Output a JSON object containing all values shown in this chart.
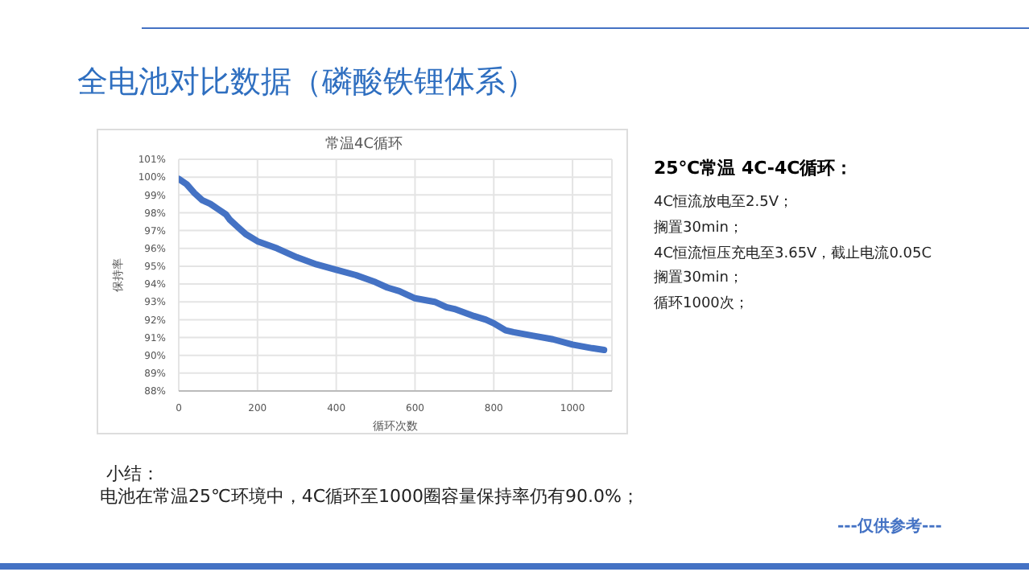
{
  "chart_data": {
    "type": "line",
    "title": "全电池对比数据（磷酸铁锂体系）",
    "subtitle": "常温4C循环",
    "xlabel": "循环次数",
    "ylabel": "保持率",
    "x": [
      0,
      20,
      40,
      60,
      80,
      100,
      120,
      130,
      150,
      170,
      200,
      250,
      300,
      350,
      400,
      450,
      500,
      530,
      560,
      600,
      650,
      680,
      700,
      750,
      780,
      800,
      830,
      850,
      900,
      950,
      1000,
      1050,
      1080
    ],
    "series": [
      {
        "color": "#4472c4",
        "values": [
          99.9,
          99.6,
          99.1,
          98.7,
          98.5,
          98.2,
          97.9,
          97.6,
          97.2,
          96.8,
          96.4,
          96.0,
          95.5,
          95.1,
          94.8,
          94.5,
          94.1,
          93.8,
          93.6,
          93.2,
          93.0,
          92.7,
          92.6,
          92.2,
          92.0,
          91.8,
          91.4,
          91.3,
          91.1,
          90.9,
          90.6,
          90.4,
          90.3
        ]
      }
    ],
    "xlim": [
      0,
      1100
    ],
    "xticks": [
      0,
      200,
      400,
      600,
      800,
      1000
    ],
    "ylim": [
      88,
      101
    ],
    "yticks": [
      {
        "value": 88,
        "label": "88%"
      },
      {
        "value": 89,
        "label": "89%"
      },
      {
        "value": 90,
        "label": "90%"
      },
      {
        "value": 91,
        "label": "91%"
      },
      {
        "value": 92,
        "label": "92%"
      },
      {
        "value": 93,
        "label": "93%"
      },
      {
        "value": 94,
        "label": "94%"
      },
      {
        "value": 95,
        "label": "95%"
      },
      {
        "value": 96,
        "label": "96%"
      },
      {
        "value": 97,
        "label": "97%"
      },
      {
        "value": 98,
        "label": "98%"
      },
      {
        "value": 99,
        "label": "99%"
      },
      {
        "value": 100,
        "label": "100%"
      },
      {
        "value": 101,
        "label": "101%"
      }
    ],
    "grid": true,
    "marker": "none",
    "line_style": "solid",
    "annotations": [
      "25℃常温 4C-4C循环：",
      "4C恒流放电至2.5V；",
      "搁置30min；",
      "4C恒流恒压充电至3.65V，截止电流0.05C",
      "搁置30min；",
      "循环1000次；",
      "小结：",
      "电池在常温25℃环境中，4C循环至1000圈容量保持率仍有90.0%；",
      "---仅供参考---"
    ]
  }
}
